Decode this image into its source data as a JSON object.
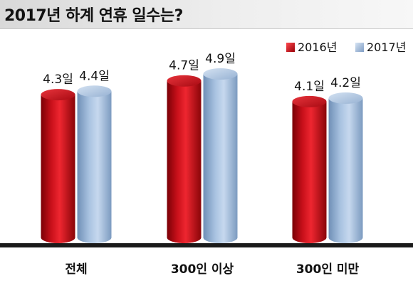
{
  "chart_data": {
    "type": "bar",
    "title": "2017년 하계 연휴 일수는?",
    "categories": [
      "전체",
      "300인 이상",
      "300인 미만"
    ],
    "series": [
      {
        "name": "2016년",
        "values": [
          4.3,
          4.7,
          4.1
        ],
        "labels": [
          "4.3일",
          "4.7일",
          "4.1일"
        ],
        "color": "#c8101a"
      },
      {
        "name": "2017년",
        "values": [
          4.4,
          4.9,
          4.2
        ],
        "labels": [
          "4.4일",
          "4.9일",
          "4.2일"
        ],
        "color": "#9db8d8"
      }
    ],
    "ylim": [
      0,
      5.6
    ],
    "grid": false,
    "legend": "top-right",
    "xlabel": "",
    "ylabel": ""
  }
}
